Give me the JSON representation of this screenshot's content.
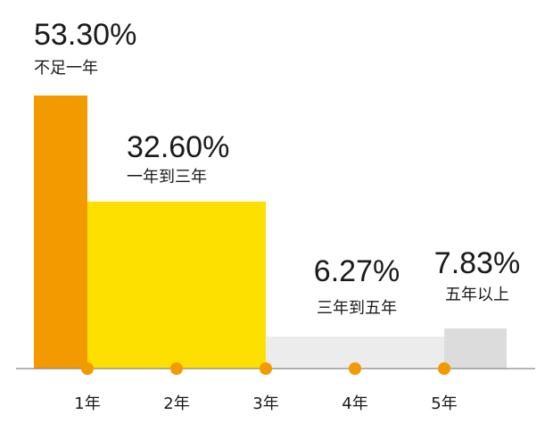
{
  "chart_data": {
    "type": "bar",
    "bars": [
      {
        "value": 53.3,
        "value_label": "53.30%",
        "category": "不足一年",
        "x_start": 0.4,
        "x_end": 1.0,
        "color": "#f29a00"
      },
      {
        "value": 32.6,
        "value_label": "32.60%",
        "category": "一年到三年",
        "x_start": 1.0,
        "x_end": 3.0,
        "color": "#fde000"
      },
      {
        "value": 6.27,
        "value_label": "6.27%",
        "category": "三年到五年",
        "x_start": 3.0,
        "x_end": 5.0,
        "color": "#ececec"
      },
      {
        "value": 7.83,
        "value_label": "7.83%",
        "category": "五年以上",
        "x_start": 5.0,
        "x_end": 5.7,
        "color": "#dcdcdc"
      }
    ],
    "x_ticks": [
      {
        "x": 1,
        "label": "1年"
      },
      {
        "x": 2,
        "label": "2年"
      },
      {
        "x": 3,
        "label": "3年"
      },
      {
        "x": 4,
        "label": "4年"
      },
      {
        "x": 5,
        "label": "5年"
      }
    ],
    "marker_color": "#f29a00",
    "baseline_color": "#888888",
    "xlabel": "",
    "ylabel": "",
    "grid": false
  }
}
